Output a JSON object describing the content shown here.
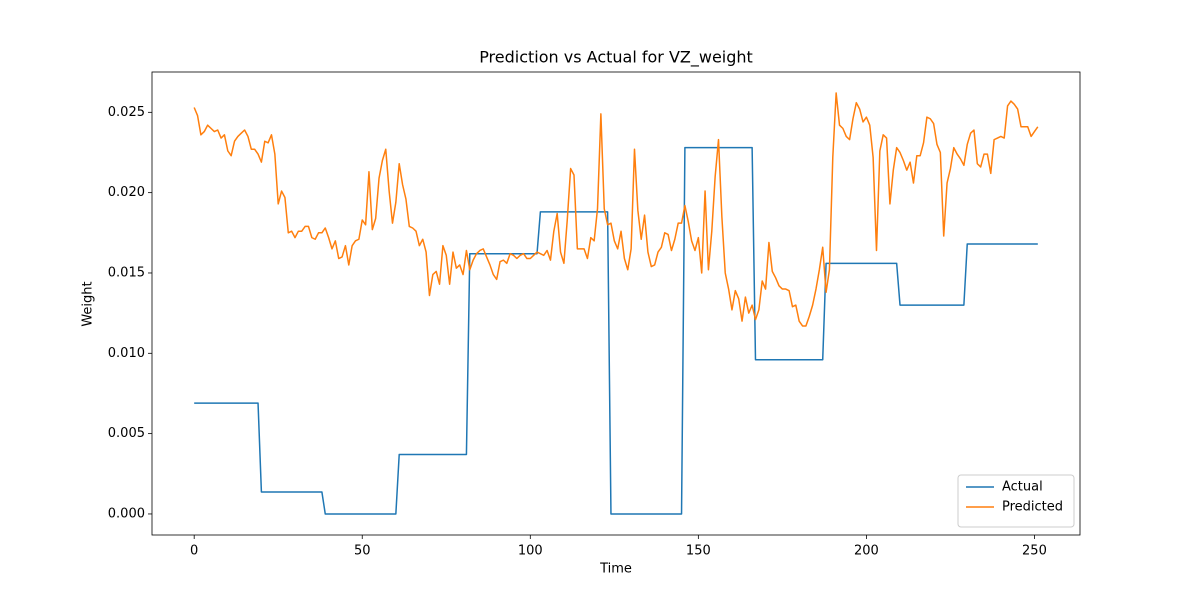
{
  "chart_data": {
    "type": "line",
    "title": "Prediction vs Actual for VZ_weight",
    "xlabel": "Time",
    "ylabel": "Weight",
    "xlim": [
      -12.55,
      263.55
    ],
    "xticks": [
      0,
      50,
      100,
      150,
      200,
      250
    ],
    "ylim": [
      -0.00131,
      0.02751
    ],
    "yticks": [
      {
        "value": 0,
        "label": "0.000"
      },
      {
        "value": 0.005,
        "label": "0.005"
      },
      {
        "value": 0.01,
        "label": "0.010"
      },
      {
        "value": 0.015,
        "label": "0.015"
      },
      {
        "value": 0.02,
        "label": "0.020"
      },
      {
        "value": 0.025,
        "label": "0.025"
      }
    ],
    "legend": "lower right",
    "series": [
      {
        "name": "Actual",
        "color": "#1f77b4",
        "x": [
          0,
          19,
          20,
          38,
          39,
          60,
          61,
          81,
          82,
          102,
          103,
          123,
          124,
          145,
          146,
          166,
          167,
          187,
          188,
          209,
          210,
          229,
          230,
          251
        ],
        "values": [
          0.0069,
          0.0069,
          0.00137,
          0.00137,
          0,
          0,
          0.0037,
          0.0037,
          0.0162,
          0.0162,
          0.0188,
          0.0188,
          0,
          0,
          0.0228,
          0.0228,
          0.0096,
          0.0096,
          0.0156,
          0.0156,
          0.013,
          0.013,
          0.0168,
          0.0168
        ]
      },
      {
        "name": "Predicted",
        "color": "#ff7f0e",
        "x": [
          0,
          1,
          2,
          3,
          4,
          5,
          6,
          7,
          8,
          9,
          10,
          11,
          12,
          13,
          14,
          15,
          16,
          17,
          18,
          19,
          20,
          21,
          22,
          23,
          24,
          25,
          26,
          27,
          28,
          29,
          30,
          31,
          32,
          33,
          34,
          35,
          36,
          37,
          38,
          39,
          40,
          41,
          42,
          43,
          44,
          45,
          46,
          47,
          48,
          49,
          50,
          51,
          52,
          53,
          54,
          55,
          56,
          57,
          58,
          59,
          60,
          61,
          62,
          63,
          64,
          65,
          66,
          67,
          68,
          69,
          70,
          71,
          72,
          73,
          74,
          75,
          76,
          77,
          78,
          79,
          80,
          81,
          82,
          83,
          84,
          85,
          86,
          87,
          88,
          89,
          90,
          91,
          92,
          93,
          94,
          95,
          96,
          97,
          98,
          99,
          100,
          101,
          102,
          103,
          104,
          105,
          106,
          107,
          108,
          109,
          110,
          111,
          112,
          113,
          114,
          115,
          116,
          117,
          118,
          119,
          120,
          121,
          122,
          123,
          124,
          125,
          126,
          127,
          128,
          129,
          130,
          131,
          132,
          133,
          134,
          135,
          136,
          137,
          138,
          139,
          140,
          141,
          142,
          143,
          144,
          145,
          146,
          147,
          148,
          149,
          150,
          151,
          152,
          153,
          154,
          155,
          156,
          157,
          158,
          159,
          160,
          161,
          162,
          163,
          164,
          165,
          166,
          167,
          168,
          169,
          170,
          171,
          172,
          173,
          174,
          175,
          176,
          177,
          178,
          179,
          180,
          181,
          182,
          183,
          184,
          185,
          186,
          187,
          188,
          189,
          190,
          191,
          192,
          193,
          194,
          195,
          196,
          197,
          198,
          199,
          200,
          201,
          202,
          203,
          204,
          205,
          206,
          207,
          208,
          209,
          210,
          211,
          212,
          213,
          214,
          215,
          216,
          217,
          218,
          219,
          220,
          221,
          222,
          223,
          224,
          225,
          226,
          227,
          228,
          229,
          230,
          231,
          232,
          233,
          234,
          235,
          236,
          237,
          238,
          239,
          240,
          241,
          242,
          243,
          244,
          245,
          246,
          247,
          248,
          249,
          250,
          251
        ],
        "values": [
          0.0253,
          0.0248,
          0.0236,
          0.0238,
          0.0242,
          0.024,
          0.0238,
          0.0239,
          0.0234,
          0.0236,
          0.0226,
          0.0223,
          0.0232,
          0.0235,
          0.0237,
          0.0239,
          0.0235,
          0.0227,
          0.0227,
          0.0224,
          0.0219,
          0.0232,
          0.0231,
          0.0236,
          0.0224,
          0.0193,
          0.0201,
          0.0197,
          0.0175,
          0.0176,
          0.0172,
          0.0176,
          0.0176,
          0.0179,
          0.0179,
          0.0172,
          0.0171,
          0.0175,
          0.0175,
          0.0178,
          0.0172,
          0.0165,
          0.017,
          0.0159,
          0.016,
          0.0167,
          0.0155,
          0.0167,
          0.017,
          0.0171,
          0.0183,
          0.018,
          0.0213,
          0.0177,
          0.0184,
          0.0209,
          0.022,
          0.0227,
          0.0201,
          0.0181,
          0.0194,
          0.0218,
          0.0205,
          0.0196,
          0.0179,
          0.0178,
          0.0176,
          0.0167,
          0.0171,
          0.0163,
          0.0136,
          0.0149,
          0.0151,
          0.0143,
          0.0167,
          0.0161,
          0.0143,
          0.0163,
          0.0153,
          0.0155,
          0.0149,
          0.0164,
          0.0152,
          0.0158,
          0.0162,
          0.0164,
          0.0165,
          0.016,
          0.0155,
          0.0149,
          0.0146,
          0.0157,
          0.0158,
          0.0156,
          0.0162,
          0.0161,
          0.0159,
          0.0161,
          0.0162,
          0.0159,
          0.0159,
          0.0161,
          0.0163,
          0.0162,
          0.0161,
          0.0164,
          0.0158,
          0.0176,
          0.0187,
          0.0163,
          0.0156,
          0.0183,
          0.0215,
          0.0211,
          0.0165,
          0.0165,
          0.0165,
          0.0159,
          0.0172,
          0.017,
          0.019,
          0.0249,
          0.019,
          0.018,
          0.0181,
          0.017,
          0.0165,
          0.0176,
          0.0159,
          0.0152,
          0.0165,
          0.0227,
          0.0189,
          0.0171,
          0.0186,
          0.0163,
          0.0154,
          0.0155,
          0.0163,
          0.0166,
          0.0175,
          0.0174,
          0.0164,
          0.0171,
          0.0181,
          0.0181,
          0.0192,
          0.0182,
          0.017,
          0.0164,
          0.0172,
          0.015,
          0.0201,
          0.0152,
          0.0176,
          0.021,
          0.0233,
          0.0185,
          0.015,
          0.014,
          0.0127,
          0.0139,
          0.0134,
          0.012,
          0.0135,
          0.0125,
          0.013,
          0.0121,
          0.0127,
          0.0145,
          0.014,
          0.0169,
          0.0151,
          0.0147,
          0.0142,
          0.014,
          0.014,
          0.0139,
          0.0129,
          0.013,
          0.012,
          0.0117,
          0.0117,
          0.0123,
          0.013,
          0.014,
          0.0152,
          0.0166,
          0.0138,
          0.0152,
          0.0222,
          0.0262,
          0.0242,
          0.024,
          0.0235,
          0.0233,
          0.0246,
          0.0256,
          0.0252,
          0.0244,
          0.0247,
          0.0242,
          0.0222,
          0.0164,
          0.0226,
          0.0236,
          0.0234,
          0.0193,
          0.0214,
          0.0228,
          0.0225,
          0.022,
          0.0214,
          0.0219,
          0.0206,
          0.0223,
          0.0223,
          0.0231,
          0.0247,
          0.0246,
          0.0243,
          0.023,
          0.0225,
          0.0173,
          0.0206,
          0.0215,
          0.0228,
          0.0224,
          0.0221,
          0.0217,
          0.023,
          0.0237,
          0.0239,
          0.0218,
          0.0216,
          0.0224,
          0.0224,
          0.0212,
          0.0233,
          0.0234,
          0.0235,
          0.0234,
          0.0254,
          0.0257,
          0.0255,
          0.0252,
          0.0241,
          0.0241,
          0.0241,
          0.0235,
          0.0238,
          0.0241
        ]
      }
    ]
  }
}
